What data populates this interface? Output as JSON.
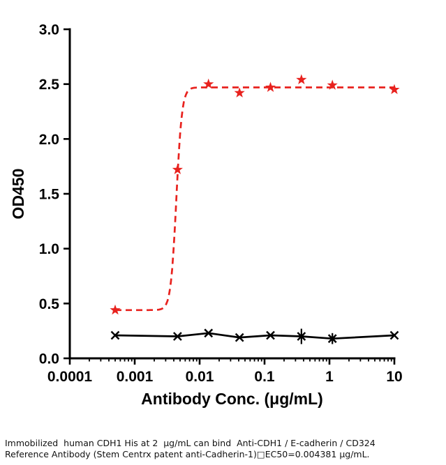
{
  "chart_data": {
    "type": "line",
    "title": "",
    "xlabel": "Antibody Conc. (μg/mL)",
    "ylabel": "OD450",
    "x_scale": "log",
    "xlim": [
      0.0001,
      10
    ],
    "ylim": [
      0,
      3.0
    ],
    "grid": false,
    "legend": "none",
    "y_ticks": [
      0,
      0.5,
      1.0,
      1.5,
      2.0,
      2.5,
      3.0
    ],
    "y_tick_labels": [
      "0.0",
      "0.5",
      "1.0",
      "1.5",
      "2.0",
      "2.5",
      "3.0"
    ],
    "x_ticks": [
      0.0001,
      0.001,
      0.01,
      0.1,
      1,
      10
    ],
    "x_tick_labels": [
      "0.0001",
      "0.001",
      "0.01",
      "0.1",
      "1",
      "10"
    ],
    "series": [
      {
        "name": "red_star_dashed",
        "color": "#e8221e",
        "marker": "star",
        "line_style": "dashed",
        "x": [
          0.0005,
          0.00457,
          0.0137,
          0.0412,
          0.1235,
          0.37,
          1.11,
          10
        ],
        "y": [
          0.44,
          1.72,
          2.5,
          2.42,
          2.47,
          2.54,
          2.49,
          2.45
        ]
      },
      {
        "name": "black_x_solid",
        "color": "#000000",
        "marker": "x",
        "line_style": "solid",
        "x": [
          0.0005,
          0.00457,
          0.0137,
          0.0412,
          0.1235,
          0.37,
          1.11,
          10
        ],
        "y": [
          0.21,
          0.2,
          0.23,
          0.19,
          0.21,
          0.2,
          0.18,
          0.21
        ],
        "yerr": [
          0,
          0,
          0,
          0,
          0,
          0.07,
          0.05,
          0
        ]
      }
    ],
    "fit": {
      "model": "4PL",
      "ec50": 0.004381,
      "bottom": 0.44,
      "top": 2.47,
      "hill": 10
    }
  },
  "caption": {
    "line1": "Immobilized  human CDH1 His at 2  μg/mL can bind  Anti-CDH1 / E-cadherin / CD324",
    "line2": "Reference Antibody (Stem Centrx patent anti-Cadherin-1)□EC50=0.004381 μg/mL."
  }
}
